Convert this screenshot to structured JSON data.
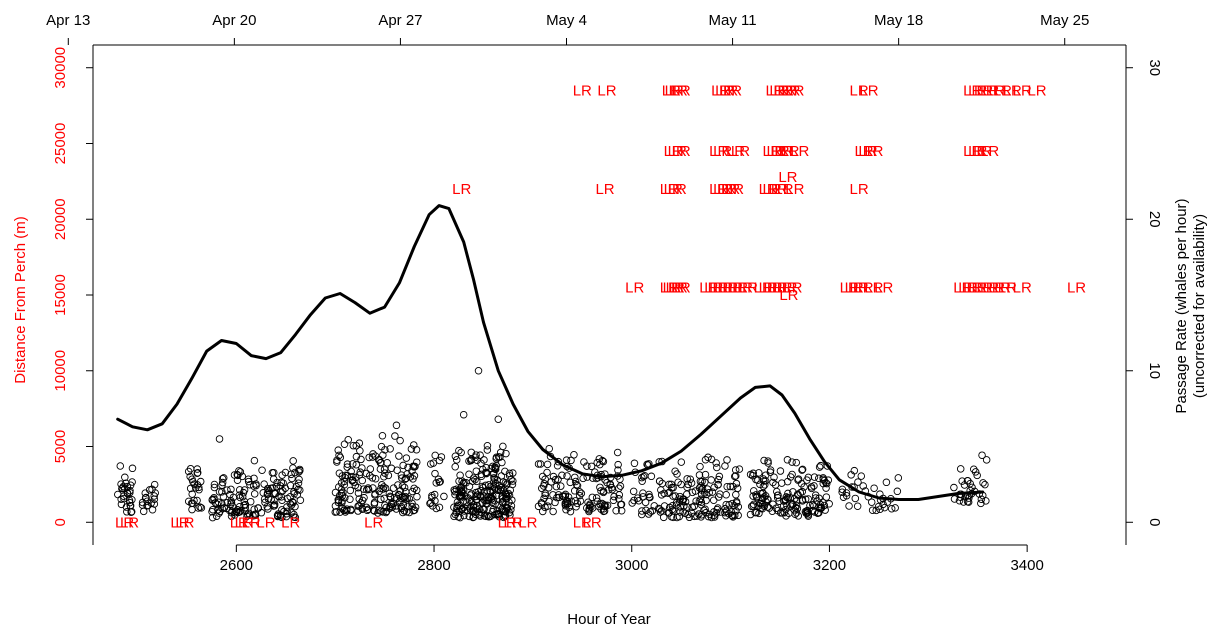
{
  "chart_data": {
    "type": "scatter",
    "title": "",
    "xlabel": "Hour of Year",
    "ylabel_left": "Distance From Perch (m)",
    "ylabel_right_line1": "Passage Rate (whales per hour)",
    "ylabel_right_line2": "(uncorrected for availability)",
    "xlim": [
      2455,
      3500
    ],
    "ylim_left": [
      -1500,
      31500
    ],
    "ylim_right": [
      -1.5,
      31.5
    ],
    "x_ticks": [
      2600,
      2800,
      3000,
      3200,
      3400
    ],
    "y_left_ticks": [
      0,
      5000,
      10000,
      15000,
      20000,
      25000,
      30000
    ],
    "y_right_ticks": [
      0,
      10,
      20,
      30
    ],
    "top_axis": {
      "labels": [
        "Apr 13",
        "Apr 20",
        "Apr 27",
        "May 4",
        "May 11",
        "May 18",
        "May 25"
      ],
      "positions": [
        2430,
        2598,
        2766,
        2934,
        3102,
        3270,
        3438
      ]
    },
    "colors": {
      "left_axis": "#ff0000",
      "right_axis": "#000000",
      "marker_label": "#ff0000",
      "points": "#000000",
      "line": "#000000"
    },
    "marker_text": "LR",
    "marker_rows": [
      {
        "y": 28500,
        "x": [
          2950,
          2975,
          3040,
          3043,
          3047,
          3050,
          3090,
          3094,
          3098,
          3102,
          3145,
          3149,
          3153,
          3157,
          3161,
          3165,
          3230,
          3240,
          3345,
          3350,
          3356,
          3362,
          3368,
          3375,
          3385,
          3395,
          3410
        ]
      },
      {
        "y": 24500,
        "x": [
          3042,
          3046,
          3050,
          3088,
          3092,
          3105,
          3110,
          3142,
          3146,
          3150,
          3154,
          3160,
          3170,
          3235,
          3239,
          3245,
          3345,
          3350,
          3355,
          3362
        ]
      },
      {
        "y": 22000,
        "x": [
          2828,
          2973,
          3038,
          3042,
          3046,
          3088,
          3092,
          3096,
          3100,
          3104,
          3138,
          3142,
          3148,
          3154,
          3165,
          3230
        ]
      },
      {
        "y": 22800,
        "x": [
          3158
        ]
      },
      {
        "y": 15500,
        "x": [
          3003,
          3038,
          3041,
          3044,
          3047,
          3050,
          3078,
          3083,
          3088,
          3093,
          3098,
          3103,
          3108,
          3113,
          3118,
          3133,
          3138,
          3143,
          3148,
          3153,
          3158,
          3163,
          3220,
          3225,
          3230,
          3235,
          3245,
          3255,
          3335,
          3340,
          3345,
          3350,
          3356,
          3362,
          3368,
          3374,
          3380,
          3395,
          3450
        ]
      },
      {
        "y": 15000,
        "x": [
          3159
        ]
      },
      {
        "y": 0,
        "x": [
          2487,
          2492,
          2543,
          2548,
          2603,
          2608,
          2615,
          2630,
          2655,
          2739,
          2874,
          2880,
          2895,
          2950,
          2960
        ]
      }
    ],
    "rate_series": {
      "x": [
        2480,
        2495,
        2510,
        2525,
        2540,
        2555,
        2570,
        2585,
        2600,
        2615,
        2630,
        2645,
        2660,
        2675,
        2690,
        2705,
        2720,
        2735,
        2750,
        2765,
        2780,
        2795,
        2805,
        2815,
        2830,
        2840,
        2850,
        2865,
        2880,
        2895,
        2910,
        2930,
        2950,
        2970,
        2990,
        3010,
        3030,
        3050,
        3070,
        3090,
        3110,
        3125,
        3140,
        3152,
        3165,
        3180,
        3195,
        3210,
        3230,
        3250,
        3270,
        3290,
        3310,
        3330,
        3355
      ],
      "y": [
        6.8,
        6.3,
        6.1,
        6.5,
        7.8,
        9.5,
        11.3,
        12.0,
        11.8,
        11.0,
        10.8,
        11.2,
        12.4,
        13.7,
        14.8,
        15.1,
        14.5,
        13.8,
        14.2,
        15.8,
        18.2,
        20.3,
        20.9,
        20.7,
        18.5,
        16.0,
        13.2,
        10.0,
        7.8,
        6.0,
        4.8,
        3.8,
        3.2,
        3.0,
        3.1,
        3.4,
        3.9,
        4.7,
        5.8,
        7.0,
        8.2,
        8.9,
        9.0,
        8.4,
        7.2,
        5.5,
        4.0,
        2.8,
        2.0,
        1.6,
        1.5,
        1.5,
        1.7,
        1.9,
        2.0
      ]
    },
    "scatter_clusters": [
      {
        "x": [
          2480,
          2495
        ],
        "n": 30,
        "y": [
          600,
          5000
        ]
      },
      {
        "x": [
          2505,
          2520
        ],
        "n": 18,
        "y": [
          500,
          3000
        ]
      },
      {
        "x": [
          2550,
          2565
        ],
        "n": 25,
        "y": [
          800,
          5500
        ]
      },
      {
        "x": [
          2575,
          2665
        ],
        "n": 170,
        "y": [
          300,
          4200
        ]
      },
      {
        "x": [
          2700,
          2785
        ],
        "n": 200,
        "y": [
          600,
          6300
        ]
      },
      {
        "x": [
          2795,
          2810
        ],
        "n": 20,
        "y": [
          900,
          5700
        ]
      },
      {
        "x": [
          2820,
          2880
        ],
        "n": 230,
        "y": [
          300,
          5500
        ]
      },
      {
        "x": [
          2905,
          2990
        ],
        "n": 140,
        "y": [
          700,
          5000
        ]
      },
      {
        "x": [
          3000,
          3110
        ],
        "n": 180,
        "y": [
          300,
          4500
        ]
      },
      {
        "x": [
          3120,
          3200
        ],
        "n": 160,
        "y": [
          400,
          4500
        ]
      },
      {
        "x": [
          3210,
          3270
        ],
        "n": 35,
        "y": [
          700,
          3800
        ]
      },
      {
        "x": [
          3325,
          3360
        ],
        "n": 35,
        "y": [
          1200,
          4700
        ]
      }
    ],
    "scatter_extra_points": [
      {
        "x": 2845,
        "y": 10000
      },
      {
        "x": 2830,
        "y": 7100
      },
      {
        "x": 2865,
        "y": 6800
      },
      {
        "x": 2762,
        "y": 6400
      },
      {
        "x": 2583,
        "y": 5500
      }
    ]
  }
}
